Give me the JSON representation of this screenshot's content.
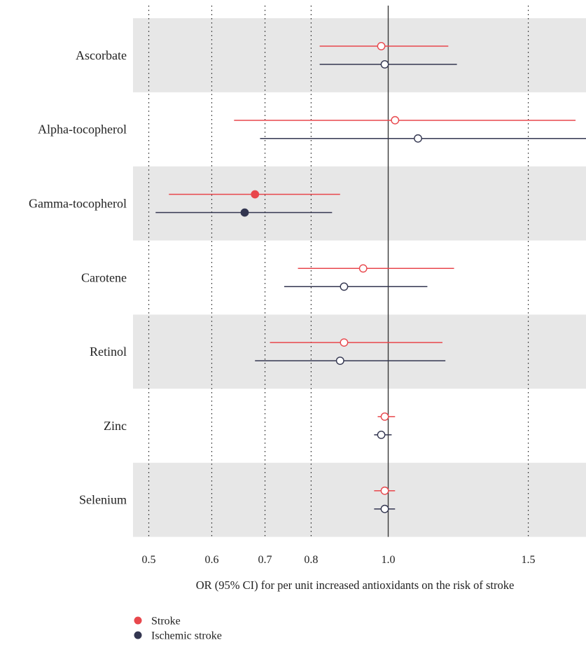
{
  "chart_data": {
    "type": "forest",
    "x_scale": "log",
    "xlim": [
      0.465,
      1.85
    ],
    "reference_line": 1.0,
    "xlabel": "OR (95% CI) for per unit increased antioxidants on the risk of stroke",
    "x_ticks": [
      {
        "value": 0.5,
        "label": "0.5"
      },
      {
        "value": 0.6,
        "label": "0.6"
      },
      {
        "value": 0.7,
        "label": "0.7"
      },
      {
        "value": 0.8,
        "label": "0.8"
      },
      {
        "value": 1.0,
        "label": "1.0"
      },
      {
        "value": 1.5,
        "label": "1.5"
      }
    ],
    "dotted_gridlines": [
      0.5,
      0.6,
      0.7,
      0.8,
      1.5
    ],
    "categories": [
      "Ascorbate",
      "Alpha-tocopherol",
      "Gamma-tocopherol",
      "Carotene",
      "Retinol",
      "Zinc",
      "Selenium"
    ],
    "shaded_rows": [
      "Ascorbate",
      "Gamma-tocopherol",
      "Retinol",
      "Selenium"
    ],
    "series": [
      {
        "name": "Stroke",
        "color": "#e8474c",
        "points": [
          {
            "category": "Ascorbate",
            "or": 0.98,
            "lower": 0.82,
            "upper": 1.19,
            "significant": false
          },
          {
            "category": "Alpha-tocopherol",
            "or": 1.02,
            "lower": 0.64,
            "upper": 1.72,
            "significant": false
          },
          {
            "category": "Gamma-tocopherol",
            "or": 0.68,
            "lower": 0.53,
            "upper": 0.87,
            "significant": true
          },
          {
            "category": "Carotene",
            "or": 0.93,
            "lower": 0.77,
            "upper": 1.21,
            "significant": false
          },
          {
            "category": "Retinol",
            "or": 0.88,
            "lower": 0.71,
            "upper": 1.17,
            "significant": false
          },
          {
            "category": "Zinc",
            "or": 0.99,
            "lower": 0.97,
            "upper": 1.02,
            "significant": false
          },
          {
            "category": "Selenium",
            "or": 0.99,
            "lower": 0.96,
            "upper": 1.02,
            "significant": false
          }
        ]
      },
      {
        "name": "Ischemic stroke",
        "color": "#333650",
        "points": [
          {
            "category": "Ascorbate",
            "or": 0.99,
            "lower": 0.82,
            "upper": 1.22,
            "significant": false
          },
          {
            "category": "Alpha-tocopherol",
            "or": 1.09,
            "lower": 0.69,
            "upper": 1.8,
            "significant": false
          },
          {
            "category": "Gamma-tocopherol",
            "or": 0.66,
            "lower": 0.51,
            "upper": 0.85,
            "significant": true
          },
          {
            "category": "Carotene",
            "or": 0.88,
            "lower": 0.74,
            "upper": 1.12,
            "significant": false
          },
          {
            "category": "Retinol",
            "or": 0.87,
            "lower": 0.68,
            "upper": 1.18,
            "significant": false
          },
          {
            "category": "Zinc",
            "or": 0.98,
            "lower": 0.96,
            "upper": 1.01,
            "significant": false
          },
          {
            "category": "Selenium",
            "or": 0.99,
            "lower": 0.96,
            "upper": 1.02,
            "significant": false
          }
        ]
      }
    ],
    "legend": {
      "position": "bottom-left",
      "entries": [
        "Stroke",
        "Ischemic stroke"
      ]
    }
  }
}
